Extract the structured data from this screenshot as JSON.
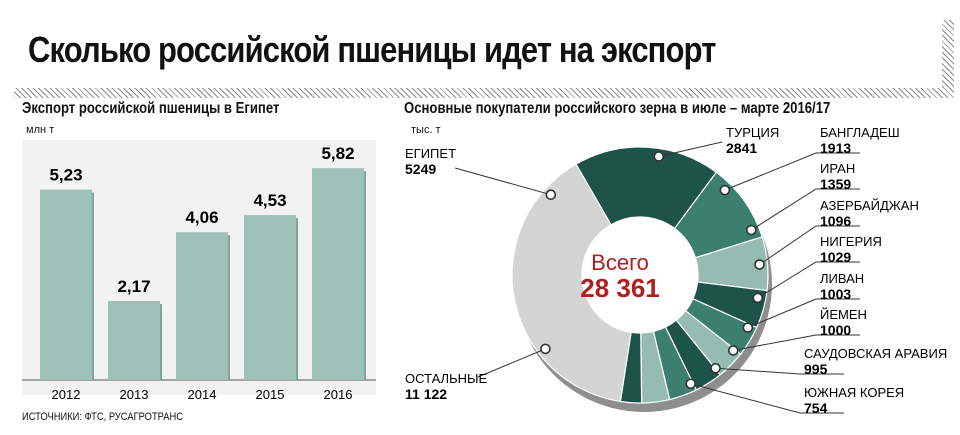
{
  "title": "Сколько российской пшеницы идет на экспорт",
  "source": "ИСТОЧНИКИ: ФТС, РУСАГРОТРАНС",
  "colors": {
    "bar": "#9dc0b7",
    "bar_side": "#7fa59b",
    "dark": "#1e5448",
    "mid": "#3c7f6e",
    "light": "#96bcb1",
    "other": "#d4d4d4",
    "total": "#b01f1f"
  },
  "chart_data": [
    {
      "type": "bar",
      "title": "Экспорт российской пшеницы в Египет",
      "ylabel": "млн т",
      "categories": [
        "2012",
        "2013",
        "2014",
        "2015",
        "2016"
      ],
      "values": [
        5.23,
        2.17,
        4.06,
        4.53,
        5.82
      ],
      "value_labels": [
        "5,23",
        "2,17",
        "4,06",
        "4,53",
        "5,82"
      ],
      "ylim": [
        0,
        7
      ],
      "grid": false
    },
    {
      "type": "pie",
      "title": "Основные покупатели российского зерна в июле – марте 2016/17",
      "unit": "тыс. т",
      "total_label": "Всего",
      "total_value": "28 361",
      "slices": [
        {
          "name": "ЕГИПЕТ",
          "value": 5249,
          "value_label": "5249",
          "color": "#1e5448"
        },
        {
          "name": "ТУРЦИЯ",
          "value": 2841,
          "value_label": "2841",
          "color": "#3c7f6e"
        },
        {
          "name": "БАНГЛАДЕШ",
          "value": 1913,
          "value_label": "1913",
          "color": "#96bcb1"
        },
        {
          "name": "ИРАН",
          "value": 1359,
          "value_label": "1359",
          "color": "#1e5448"
        },
        {
          "name": "АЗЕРБАЙДЖАН",
          "value": 1096,
          "value_label": "1096",
          "color": "#3c7f6e"
        },
        {
          "name": "НИГЕРИЯ",
          "value": 1029,
          "value_label": "1029",
          "color": "#96bcb1"
        },
        {
          "name": "ЛИВАН",
          "value": 1003,
          "value_label": "1003",
          "color": "#1e5448"
        },
        {
          "name": "ЙЕМЕН",
          "value": 1000,
          "value_label": "1000",
          "color": "#3c7f6e"
        },
        {
          "name": "САУДОВСКАЯ АРАВИЯ",
          "value": 995,
          "value_label": "995",
          "color": "#96bcb1"
        },
        {
          "name": "ЮЖНАЯ КОРЕЯ",
          "value": 754,
          "value_label": "754",
          "color": "#1e5448"
        },
        {
          "name": "ОСТАЛЬНЫЕ",
          "value": 11122,
          "value_label": "11 122",
          "color": "#d4d4d4"
        }
      ]
    }
  ]
}
